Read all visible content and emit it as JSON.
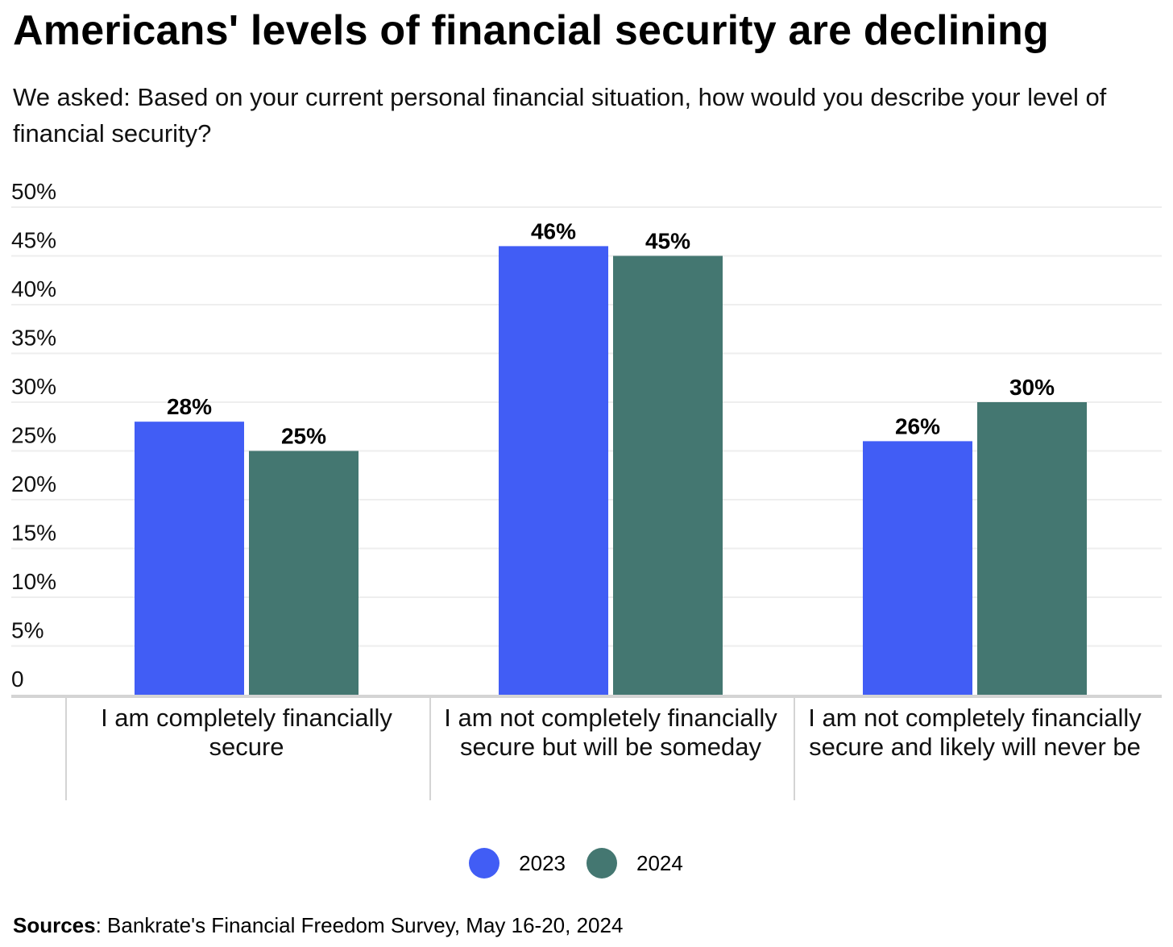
{
  "title": "Americans' levels of financial security are declining",
  "subtitle": "We asked: Based on your current personal financial situation, how would you describe your level of financial security?",
  "sources_label": "Sources",
  "sources_text": ": Bankrate's Financial Freedom Survey, May 16-20, 2024",
  "colors": {
    "2023": "#415df5",
    "2024": "#447771",
    "grid": "#eeeeee",
    "axis": "#d4d4d4"
  },
  "chart_data": {
    "type": "bar",
    "categories": [
      "I am completely financially secure",
      "I am not completely financially secure but will be someday",
      "I am not completely financially secure and likely will never be"
    ],
    "series": [
      {
        "name": "2023",
        "values": [
          28,
          46,
          26
        ],
        "labels": [
          "28%",
          "46%",
          "26%"
        ]
      },
      {
        "name": "2024",
        "values": [
          25,
          45,
          30
        ],
        "labels": [
          "25%",
          "45%",
          "30%"
        ]
      }
    ],
    "ylim": [
      0,
      50
    ],
    "yticks": [
      0,
      5,
      10,
      15,
      20,
      25,
      30,
      35,
      40,
      45,
      50
    ],
    "ytick_labels": [
      "0",
      "5%",
      "10%",
      "15%",
      "20%",
      "25%",
      "30%",
      "35%",
      "40%",
      "45%",
      "50%"
    ],
    "grid": true,
    "legend": "bottom-center"
  }
}
